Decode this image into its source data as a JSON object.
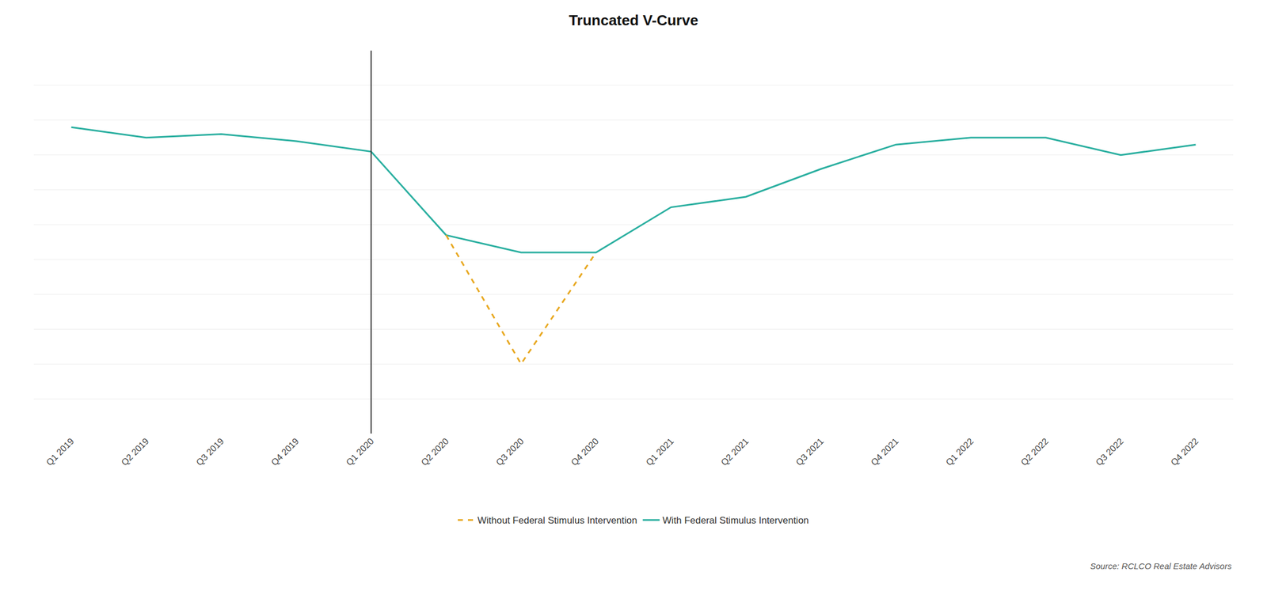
{
  "chart_data": {
    "type": "line",
    "title": "Truncated V-Curve",
    "categories": [
      "Q1 2019",
      "Q2 2019",
      "Q3 2019",
      "Q4 2019",
      "Q1 2020",
      "Q2 2020",
      "Q3 2020",
      "Q4 2020",
      "Q1 2021",
      "Q2 2021",
      "Q3 2021",
      "Q4 2021",
      "Q1 2022",
      "Q2 2022",
      "Q3 2022",
      "Q4 2022"
    ],
    "series": [
      {
        "name": "With Federal Stimulus Intervention",
        "color": "#2aafa0",
        "line_style": "solid",
        "values": [
          88,
          85,
          86,
          84,
          81,
          57,
          52,
          52,
          65,
          68,
          76,
          83,
          85,
          85,
          80,
          83
        ]
      },
      {
        "name": "Without Federal Stimulus Intervention",
        "color": "#e8a820",
        "line_style": "dashed",
        "values": [
          null,
          null,
          null,
          null,
          null,
          57,
          20,
          52,
          null,
          null,
          null,
          null,
          null,
          null,
          null,
          null
        ]
      }
    ],
    "vline": {
      "x": "Q1 2020",
      "color": "#333333"
    },
    "ylim": [
      0,
      110
    ],
    "yticks": [
      0,
      10,
      20,
      30,
      40,
      50,
      60,
      70,
      80,
      90,
      100,
      110
    ],
    "grid": true,
    "tick_labels": "x",
    "legend": "bottom",
    "annotations": [
      "Source: RCLCO Real Estate Advisors"
    ]
  }
}
